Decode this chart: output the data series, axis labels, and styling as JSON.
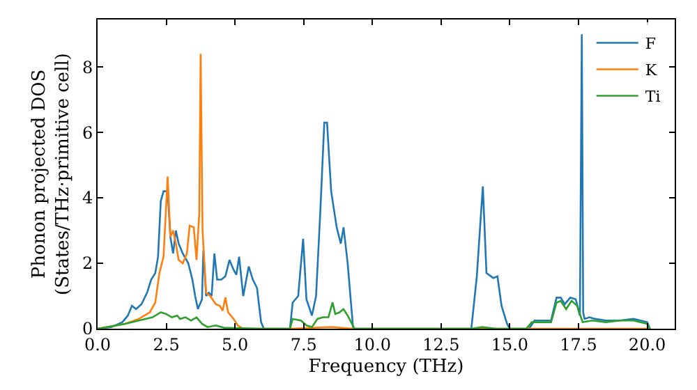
{
  "chart_data": {
    "type": "line",
    "xlabel": "Frequency (THz)",
    "ylabel": "Phonon projected DOS\n(States/THz·primitive cell)",
    "xlim": [
      0,
      21.0
    ],
    "ylim": [
      0,
      9.45
    ],
    "xticks": [
      {
        "value": 0,
        "label": "0.0"
      },
      {
        "value": 2.5,
        "label": "2.5"
      },
      {
        "value": 5,
        "label": "5.0"
      },
      {
        "value": 7.5,
        "label": "7.5"
      },
      {
        "value": 10,
        "label": "10.0"
      },
      {
        "value": 12.5,
        "label": "12.5"
      },
      {
        "value": 15,
        "label": "15.0"
      },
      {
        "value": 17.5,
        "label": "17.5"
      },
      {
        "value": 20,
        "label": "20.0"
      }
    ],
    "yticks": [
      0,
      2,
      4,
      6,
      8
    ],
    "legend": "top right",
    "marker": "none",
    "line_style": "solid",
    "series": [
      {
        "name": "F",
        "color": "#1f77b4",
        "x": [
          0,
          0.5,
          0.9,
          1.1,
          1.25,
          1.4,
          1.6,
          1.8,
          1.95,
          2.1,
          2.2,
          2.3,
          2.4,
          2.55,
          2.65,
          2.75,
          2.85,
          2.95,
          3.1,
          3.3,
          3.45,
          3.55,
          3.65,
          3.8,
          3.85,
          3.95,
          4.05,
          4.15,
          4.25,
          4.35,
          4.5,
          4.65,
          4.8,
          4.95,
          5.05,
          5.15,
          5.3,
          5.5,
          5.65,
          5.8,
          5.95,
          6.05,
          7.0,
          7.1,
          7.3,
          7.48,
          7.6,
          7.8,
          7.95,
          8.1,
          8.25,
          8.35,
          8.5,
          8.7,
          8.85,
          8.95,
          9.1,
          9.3,
          13.6,
          13.8,
          13.95,
          14.02,
          14.15,
          14.4,
          14.55,
          14.7,
          14.9,
          15.0,
          15.7,
          15.9,
          16.5,
          16.7,
          16.85,
          17.0,
          17.2,
          17.4,
          17.55,
          17.62,
          17.67,
          17.72,
          17.9,
          18.1,
          18.5,
          19.0,
          19.5,
          20.0,
          20.1
        ],
        "values": [
          0,
          0.05,
          0.2,
          0.4,
          0.7,
          0.6,
          0.75,
          1.1,
          1.5,
          1.7,
          2.2,
          3.9,
          4.2,
          4.2,
          2.8,
          2.3,
          3.0,
          2.6,
          2.3,
          2.0,
          1.5,
          1.0,
          0.6,
          0.9,
          2.4,
          1.0,
          1.1,
          1.0,
          2.3,
          1.5,
          1.5,
          1.6,
          2.1,
          1.8,
          1.65,
          2.2,
          1.0,
          1.9,
          1.5,
          1.25,
          0.2,
          0,
          0,
          0.8,
          1.0,
          2.75,
          0.9,
          0.4,
          1.0,
          3.5,
          6.3,
          6.3,
          4.2,
          3.1,
          2.6,
          3.1,
          2.0,
          0,
          0,
          1.6,
          3.5,
          4.35,
          1.7,
          1.55,
          1.6,
          0.7,
          0.15,
          0,
          0,
          0.25,
          0.25,
          0.95,
          0.95,
          0.75,
          0.95,
          0.9,
          0.4,
          9.0,
          0.5,
          0.3,
          0.35,
          0.3,
          0.25,
          0.25,
          0.3,
          0.2,
          0
        ]
      },
      {
        "name": "K",
        "color": "#ff7f0e",
        "x": [
          0,
          1.0,
          1.5,
          1.9,
          2.1,
          2.25,
          2.4,
          2.55,
          2.65,
          2.75,
          2.85,
          2.95,
          3.1,
          3.25,
          3.35,
          3.5,
          3.6,
          3.7,
          3.75,
          3.82,
          3.95,
          4.1,
          4.3,
          4.45,
          4.55,
          4.65,
          4.75,
          4.95,
          5.1,
          5.3,
          7.0,
          8.5,
          9.3,
          20.1
        ],
        "values": [
          0,
          0.15,
          0.3,
          0.5,
          0.8,
          1.7,
          2.2,
          4.65,
          2.8,
          3.0,
          2.6,
          2.1,
          2.0,
          2.3,
          3.15,
          3.1,
          2.1,
          3.5,
          8.4,
          3.0,
          1.1,
          1.0,
          0.75,
          0.7,
          0.55,
          0.95,
          0.5,
          0.3,
          0.1,
          0,
          0,
          0.05,
          0,
          0
        ]
      },
      {
        "name": "Ti",
        "color": "#2ca02c",
        "x": [
          0,
          1.0,
          1.5,
          2.0,
          2.3,
          2.5,
          2.7,
          2.9,
          3.0,
          3.2,
          3.4,
          3.6,
          3.8,
          4.0,
          4.3,
          4.6,
          5.0,
          6.0,
          7.0,
          7.1,
          7.4,
          7.6,
          7.8,
          8.0,
          8.2,
          8.4,
          8.55,
          8.65,
          8.8,
          8.95,
          9.1,
          9.35,
          13.6,
          14.0,
          14.5,
          15.6,
          15.8,
          16.5,
          16.7,
          16.85,
          17.05,
          17.25,
          17.45,
          17.65,
          18.0,
          18.5,
          19.0,
          19.5,
          20.0,
          20.1
        ],
        "values": [
          0,
          0.15,
          0.25,
          0.35,
          0.5,
          0.45,
          0.35,
          0.4,
          0.3,
          0.35,
          0.25,
          0.35,
          0.15,
          0.05,
          0.1,
          0.03,
          0.02,
          0,
          0,
          0.3,
          0.25,
          0.1,
          0.05,
          0.3,
          0.35,
          0.35,
          0.8,
          0.45,
          0.5,
          0.6,
          0.4,
          0,
          0,
          0.05,
          0,
          0,
          0.2,
          0.2,
          0.8,
          0.85,
          0.6,
          0.85,
          0.7,
          0.2,
          0.25,
          0.2,
          0.25,
          0.25,
          0.15,
          0
        ]
      }
    ]
  }
}
